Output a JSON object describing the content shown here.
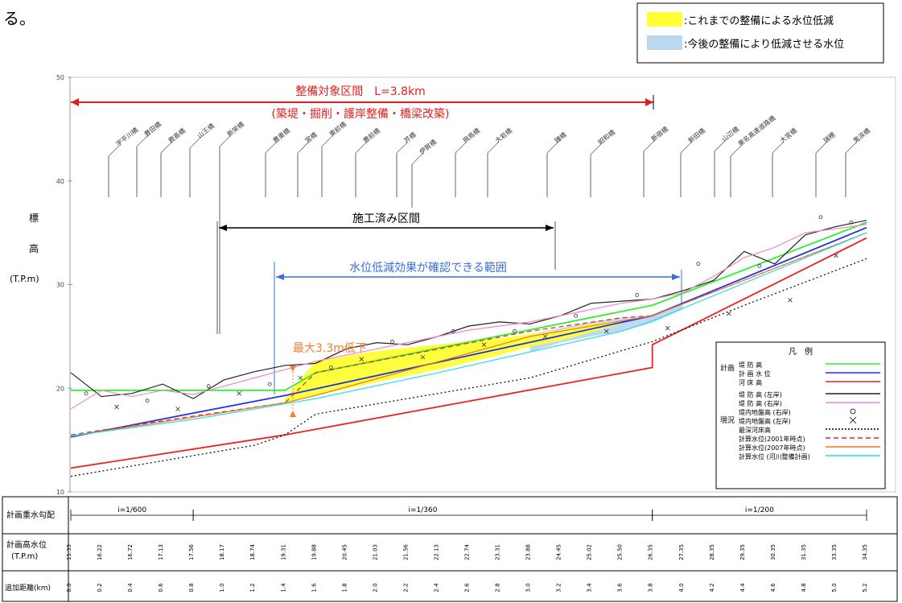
{
  "page_fragment": "る。",
  "legend_top": [
    {
      "label": ":これまでの整備による水位低減",
      "color": "#ffff33"
    },
    {
      "label": ":今後の整備により低減させる水位",
      "color": "#bcd8ee"
    }
  ],
  "annotations": {
    "target_section": "整備対象区間　L=3.8km",
    "target_section_sub": "(築堤・掘削・護岸整備・橋梁改築)",
    "completed_section": "施工済み区間",
    "effect_range": "水位低減効果が確認できる範囲",
    "max_drop": "最大3.3m低下"
  },
  "bridges": [
    "宇平川橋",
    "豊田橋",
    "鹿島橋",
    "山王橋",
    "新栄橋",
    "豊東橋",
    "宮橋",
    "東前橋",
    "豊前橋",
    "芹橋",
    "伊賀橋",
    "飛鳥橋",
    "大岩橋",
    "鐘橋",
    "昭和橋",
    "新宿橋",
    "新田橋",
    "山辺橋",
    "東名高速道路橋",
    "大宮橋",
    "瑞穂",
    "鬼涙橋"
  ],
  "inner_legend": {
    "title": "凡　例",
    "groups": [
      {
        "group": "計画",
        "items": [
          {
            "label": "堤 防 高",
            "color": "#33ee33",
            "style": "solid"
          },
          {
            "label": "計 画 水 位",
            "color": "#1f33ee",
            "style": "solid"
          },
          {
            "label": "河 床 高",
            "color": "#ee2222",
            "style": "solid"
          }
        ]
      },
      {
        "group": "現況",
        "items": [
          {
            "label": "堤 防 高 (左岸)",
            "color": "#222222",
            "style": "solid"
          },
          {
            "label": "堤 防 高 (右岸)",
            "color": "#ee88cc",
            "style": "solid"
          },
          {
            "label": "堤内地盤高 (右岸)",
            "color": "#000000",
            "style": "circle"
          },
          {
            "label": "堤内地盤高 (左岸)",
            "color": "#000000",
            "style": "cross"
          },
          {
            "label": "最深河床高",
            "color": "#000000",
            "style": "dotted"
          },
          {
            "label": "計算水位(2001年時点)",
            "color": "#ee2222",
            "style": "dashed"
          },
          {
            "label": "計算水位(2007年時点)",
            "color": "#ee7722",
            "style": "solid"
          },
          {
            "label": "計算水位 (河川整備計画)",
            "color": "#22ddee",
            "style": "solid"
          }
        ]
      }
    ]
  },
  "table": {
    "row1_label": "計画重水勾配",
    "row2_label": "計画高水位\n(T.P.m)",
    "row3_label": "追加距離(km)",
    "gradients": [
      {
        "label": "i=1/600",
        "from": 0.0,
        "to": 0.8
      },
      {
        "label": "i=1/360",
        "from": 0.8,
        "to": 3.8
      },
      {
        "label": "i=1/200",
        "from": 3.8,
        "to": 5.2
      }
    ],
    "hwl": [
      "15.33",
      "16.22",
      "16.72",
      "17.13",
      "17.56",
      "18.17",
      "18.74",
      "19.31",
      "19.88",
      "20.45",
      "21.03",
      "21.56",
      "22.13",
      "22.74",
      "23.31",
      "23.88",
      "24.45",
      "25.02",
      "25.50",
      "26.35",
      "27.35",
      "28.35",
      "29.35",
      "30.35",
      "31.35",
      "33.35",
      "34.35"
    ]
  },
  "chart_data": {
    "type": "line",
    "title": "",
    "xlabel": "",
    "ylabel": "標高 (T.P.m)",
    "xlim": [
      0.0,
      5.2
    ],
    "ylim": [
      10,
      50
    ],
    "yticks": [
      10,
      20,
      30,
      40,
      50
    ],
    "xticks": [
      "0.0",
      "0.2",
      "0.4",
      "0.6",
      "0.8",
      "1.0",
      "1.2",
      "1.4",
      "1.6",
      "1.8",
      "2.0",
      "2.2",
      "2.4",
      "2.6",
      "2.8",
      "3.0",
      "3.2",
      "3.4",
      "3.6",
      "3.8",
      "4.0",
      "4.2",
      "4.4",
      "4.6",
      "4.8",
      "5.0",
      "5.2"
    ],
    "series": [
      {
        "name": "計画堤防高",
        "color": "#33ee33",
        "x": [
          0.0,
          1.4,
          1.6,
          3.8,
          5.2
        ],
        "y": [
          19.8,
          19.8,
          21.5,
          28.0,
          36.0
        ]
      },
      {
        "name": "計画水位",
        "color": "#1f33ee",
        "x": [
          0.0,
          0.8,
          1.4,
          3.8,
          5.2
        ],
        "y": [
          15.3,
          17.6,
          19.3,
          27.0,
          35.5
        ]
      },
      {
        "name": "河床高",
        "color": "#ee2222",
        "x": [
          0.0,
          1.4,
          3.8,
          3.8,
          5.2
        ],
        "y": [
          12.3,
          15.5,
          22.0,
          24.2,
          34.5
        ]
      },
      {
        "name": "最深河床高",
        "color": "#000000",
        "dash": "2,3",
        "x": [
          0.0,
          0.6,
          1.2,
          1.4,
          1.6,
          2.4,
          3.0,
          3.8,
          4.4,
          5.2
        ],
        "y": [
          11.5,
          13.0,
          14.5,
          15.5,
          17.5,
          19.5,
          21.0,
          24.5,
          28.0,
          32.5
        ]
      },
      {
        "name": "計算水位(2001年時点)",
        "color": "#ee2222",
        "dash": "6,4",
        "x": [
          0.0,
          0.8,
          1.4,
          1.6,
          3.0,
          3.6,
          3.8,
          5.2
        ],
        "y": [
          15.5,
          17.3,
          18.6,
          21.5,
          25.5,
          26.8,
          27.0,
          35.0
        ]
      },
      {
        "name": "計算水位(2007年時点)",
        "color": "#ee7722",
        "x": [
          0.0,
          0.8,
          1.4,
          1.6,
          3.0,
          3.6,
          3.8,
          5.2
        ],
        "y": [
          15.4,
          17.2,
          18.6,
          19.3,
          25.0,
          26.5,
          27.0,
          35.0
        ]
      },
      {
        "name": "計算水位(河川整備計画)",
        "color": "#22ddee",
        "x": [
          0.0,
          0.8,
          1.4,
          1.6,
          2.4,
          3.0,
          3.6,
          3.8,
          5.2
        ],
        "y": [
          15.4,
          17.0,
          18.5,
          19.0,
          21.5,
          23.5,
          25.5,
          26.5,
          35.0
        ]
      },
      {
        "name": "堤防高(左岸)",
        "color": "#222222",
        "x": [
          0.0,
          0.2,
          0.4,
          0.6,
          0.8,
          1.0,
          1.2,
          1.4,
          1.6,
          1.8,
          2.0,
          2.2,
          2.4,
          2.6,
          2.8,
          3.0,
          3.2,
          3.4,
          3.6,
          3.8,
          4.0,
          4.2,
          4.4,
          4.6,
          4.8,
          5.0,
          5.2
        ],
        "y": [
          21.5,
          19.2,
          19.5,
          20.4,
          19.0,
          20.8,
          21.6,
          22.2,
          22.4,
          23.8,
          24.4,
          24.2,
          25.0,
          26.0,
          26.4,
          26.2,
          27.0,
          28.2,
          28.4,
          28.6,
          29.4,
          30.4,
          33.2,
          32.0,
          34.8,
          35.6,
          36.2
        ]
      },
      {
        "name": "堤防高(右岸)",
        "color": "#ee88cc",
        "x": [
          0.0,
          0.2,
          0.4,
          0.6,
          0.8,
          1.0,
          1.2,
          1.4,
          1.6,
          1.8,
          2.0,
          2.2,
          2.4,
          2.6,
          2.8,
          3.0,
          3.2,
          3.4,
          3.6,
          3.8,
          4.0,
          4.2,
          4.4,
          4.6,
          4.8,
          5.0,
          5.2
        ],
        "y": [
          18.0,
          19.8,
          19.2,
          19.8,
          19.4,
          20.2,
          21.0,
          21.8,
          22.6,
          23.2,
          23.8,
          24.4,
          25.0,
          25.6,
          26.0,
          26.4,
          27.0,
          27.6,
          28.2,
          28.6,
          29.2,
          30.8,
          32.6,
          33.6,
          35.0,
          35.4,
          35.8
        ]
      }
    ],
    "fill_past": {
      "x": [
        1.4,
        1.6,
        2.0,
        2.4,
        2.8,
        3.0,
        3.2,
        3.4,
        3.6
      ],
      "upper": [
        19.0,
        22.6,
        23.6,
        24.2,
        24.8,
        25.2,
        25.6,
        26.2,
        26.5
      ],
      "lower": [
        18.6,
        19.3,
        20.6,
        21.8,
        23.2,
        24.0,
        24.6,
        25.4,
        26.2
      ]
    },
    "fill_future": {
      "x": [
        3.0,
        3.2,
        3.4,
        3.6,
        3.8,
        4.0
      ],
      "upper": [
        25.2,
        25.8,
        26.4,
        26.8,
        27.0,
        28.2
      ],
      "lower": [
        23.5,
        24.4,
        25.0,
        25.5,
        26.3,
        27.6
      ]
    },
    "scatter_right_bank": {
      "x": [
        0.1,
        0.5,
        0.9,
        1.3,
        1.7,
        2.1,
        2.5,
        2.9,
        3.3,
        3.7,
        4.1,
        4.5,
        4.9,
        5.1
      ],
      "y": [
        19.5,
        18.8,
        20.2,
        20.4,
        22.0,
        24.5,
        25.5,
        25.5,
        27.0,
        29.0,
        32.0,
        31.8,
        36.5,
        36.0
      ]
    },
    "scatter_left_bank": {
      "x": [
        0.3,
        0.7,
        1.1,
        1.5,
        1.9,
        2.3,
        2.7,
        3.1,
        3.5,
        3.9,
        4.3,
        4.7,
        5.0
      ],
      "y": [
        18.2,
        18.0,
        19.5,
        21.0,
        22.8,
        23.0,
        24.2,
        25.0,
        25.5,
        25.8,
        27.2,
        28.5,
        32.8
      ]
    }
  }
}
